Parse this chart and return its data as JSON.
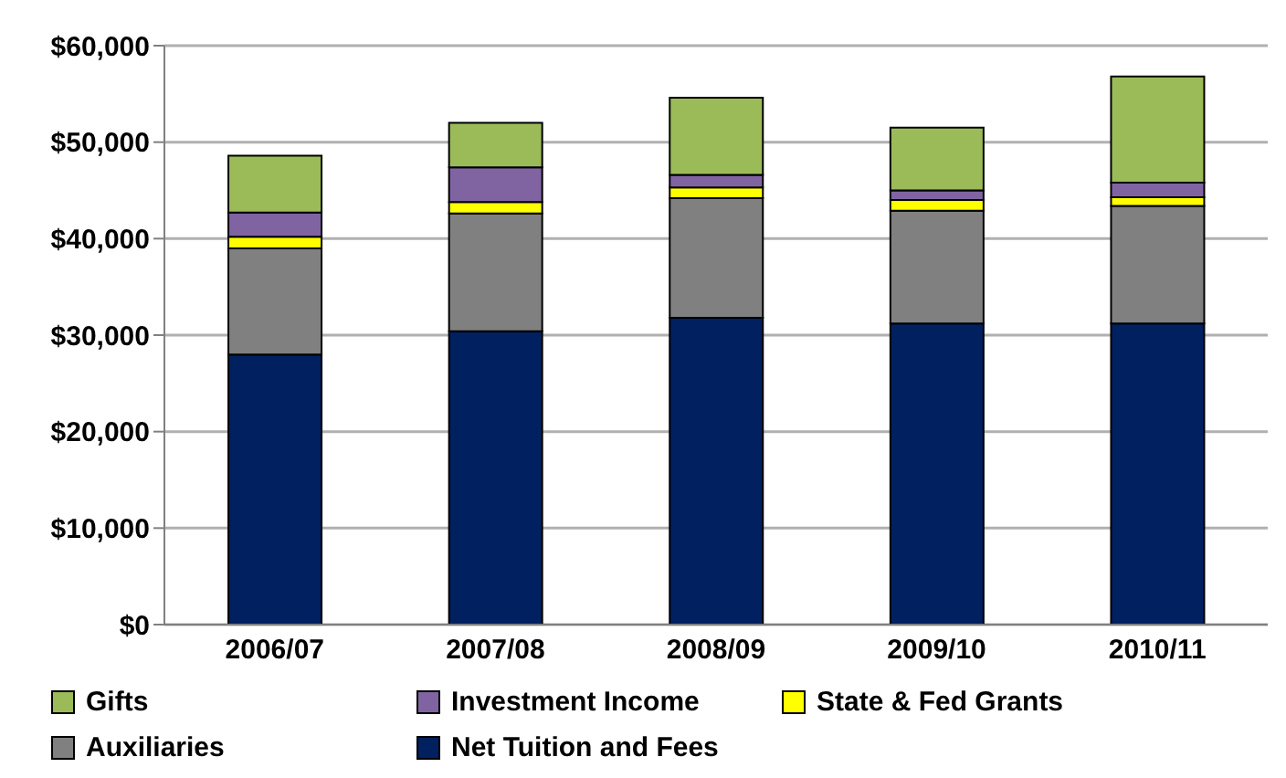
{
  "chart_data": {
    "type": "bar",
    "stacked": true,
    "categories": [
      "2006/07",
      "2007/08",
      "2008/09",
      "2009/10",
      "2010/11"
    ],
    "series": [
      {
        "name": "Net Tuition and Fees",
        "color": "#002060",
        "values": [
          28000,
          30400,
          31800,
          31200,
          31200
        ]
      },
      {
        "name": "Auxiliaries",
        "color": "#808080",
        "values": [
          11000,
          12200,
          12400,
          11700,
          12200
        ]
      },
      {
        "name": "State & Fed Grants",
        "color": "#ffff00",
        "values": [
          1200,
          1200,
          1100,
          1100,
          900
        ]
      },
      {
        "name": "Investment Income",
        "color": "#8064a2",
        "values": [
          2500,
          3600,
          1300,
          1000,
          1500
        ]
      },
      {
        "name": "Gifts",
        "color": "#9bbb59",
        "values": [
          5900,
          4600,
          8000,
          6500,
          11000
        ]
      }
    ],
    "ylim": [
      0,
      60000
    ],
    "yticks": [
      {
        "value": 0,
        "label": "$0"
      },
      {
        "value": 10000,
        "label": "$10,000"
      },
      {
        "value": 20000,
        "label": "$20,000"
      },
      {
        "value": 30000,
        "label": "$30,000"
      },
      {
        "value": 40000,
        "label": "$40,000"
      },
      {
        "value": 50000,
        "label": "$50,000"
      },
      {
        "value": 60000,
        "label": "$60,000"
      }
    ],
    "grid": "y",
    "legend": "bottom"
  }
}
